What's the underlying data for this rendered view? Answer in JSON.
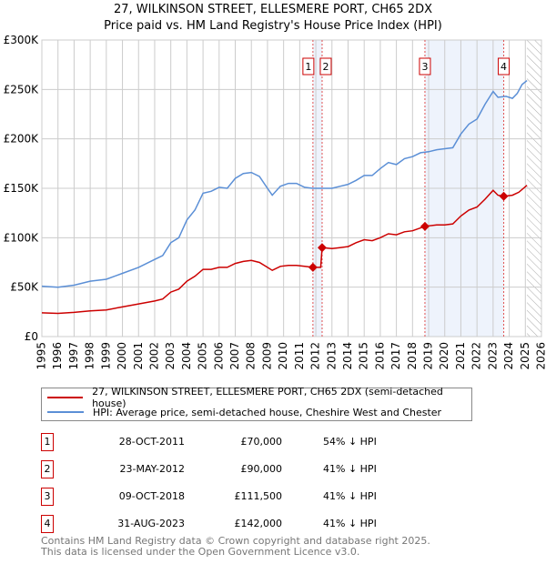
{
  "chart_data": {
    "type": "line",
    "title": "27, WILKINSON STREET, ELLESMERE PORT, CH65 2DX",
    "subtitle": "Price paid vs. HM Land Registry's House Price Index (HPI)",
    "xlim": [
      1995,
      2026
    ],
    "ylim": [
      0,
      300000
    ],
    "x_ticks": [
      "1995",
      "1996",
      "1997",
      "1998",
      "1999",
      "2000",
      "2001",
      "2002",
      "2003",
      "2004",
      "2005",
      "2006",
      "2007",
      "2008",
      "2009",
      "2010",
      "2011",
      "2012",
      "2013",
      "2014",
      "2015",
      "2016",
      "2017",
      "2018",
      "2019",
      "2020",
      "2021",
      "2022",
      "2023",
      "2024",
      "2025",
      "2026"
    ],
    "y_ticks": [
      {
        "v": 0,
        "label": "£0"
      },
      {
        "v": 50000,
        "label": "£50K"
      },
      {
        "v": 100000,
        "label": "£100K"
      },
      {
        "v": 150000,
        "label": "£150K"
      },
      {
        "v": 200000,
        "label": "£200K"
      },
      {
        "v": 250000,
        "label": "£250K"
      },
      {
        "v": 300000,
        "label": "£300K"
      }
    ],
    "grid": true,
    "series": [
      {
        "name": "27, WILKINSON STREET, ELLESMERE PORT, CH65 2DX (semi-detached house)",
        "color": "#cc0000",
        "x": [
          1995,
          1996,
          1997,
          1998,
          1999,
          2000,
          2001,
          2002,
          2002.5,
          2003,
          2003.5,
          2004,
          2004.5,
          2005,
          2005.5,
          2006,
          2006.5,
          2007,
          2007.5,
          2008,
          2008.5,
          2009,
          2009.3,
          2009.8,
          2010.3,
          2010.8,
          2011.3,
          2011.82,
          2012.3,
          2012.39,
          2013,
          2013.5,
          2014,
          2014.5,
          2015,
          2015.5,
          2016,
          2016.5,
          2017,
          2017.5,
          2018,
          2018.77,
          2019.5,
          2020,
          2020.5,
          2021,
          2021.5,
          2022,
          2022.5,
          2023,
          2023.3,
          2023.66,
          2024.2,
          2024.6,
          2025.1
        ],
        "y": [
          24000,
          23500,
          24500,
          26000,
          27000,
          30000,
          33000,
          36000,
          38000,
          45000,
          48000,
          56000,
          61000,
          68000,
          68000,
          70000,
          70000,
          74000,
          76000,
          77000,
          75000,
          70000,
          67000,
          71000,
          72000,
          72000,
          71000,
          70000,
          70000,
          90000,
          89000,
          90000,
          91000,
          95000,
          98000,
          97000,
          100000,
          104000,
          103000,
          106000,
          107000,
          111500,
          113000,
          113000,
          114000,
          122000,
          128000,
          131000,
          139000,
          148000,
          143000,
          142000,
          143000,
          146000,
          153000
        ]
      },
      {
        "name": "HPI: Average price, semi-detached house, Cheshire West and Chester",
        "color": "#5b8fd6",
        "x": [
          1995,
          1996,
          1997,
          1998,
          1999,
          2000,
          2001,
          2002,
          2002.5,
          2003,
          2003.5,
          2004,
          2004.5,
          2005,
          2005.5,
          2006,
          2006.5,
          2007,
          2007.5,
          2008,
          2008.5,
          2009,
          2009.3,
          2009.8,
          2010.3,
          2010.8,
          2011.3,
          2011.8,
          2012.5,
          2013,
          2013.5,
          2014,
          2014.5,
          2015,
          2015.5,
          2016,
          2016.5,
          2017,
          2017.5,
          2018,
          2018.5,
          2019,
          2019.5,
          2020,
          2020.5,
          2021,
          2021.5,
          2022,
          2022.5,
          2023,
          2023.3,
          2023.8,
          2024.2,
          2024.5,
          2024.8,
          2025.1
        ],
        "y": [
          51000,
          50000,
          52000,
          56000,
          58000,
          64000,
          70000,
          78000,
          82000,
          95000,
          100000,
          118000,
          128000,
          145000,
          147000,
          151000,
          150000,
          160000,
          165000,
          166000,
          162000,
          150000,
          143000,
          152000,
          155000,
          155000,
          151000,
          150000,
          150000,
          150000,
          152000,
          154000,
          158000,
          163000,
          163000,
          170000,
          176000,
          174000,
          180000,
          182000,
          186000,
          187000,
          189000,
          190000,
          191000,
          205000,
          215000,
          220000,
          235000,
          248000,
          242000,
          243000,
          241000,
          246000,
          255000,
          259000
        ]
      }
    ],
    "sales": [
      {
        "n": "1",
        "date": "28-OCT-2011",
        "price": "£70,000",
        "hpi": "54% ↓ HPI",
        "x": 2011.82,
        "y": 70000
      },
      {
        "n": "2",
        "date": "23-MAY-2012",
        "price": "£90,000",
        "hpi": "41% ↓ HPI",
        "x": 2012.39,
        "y": 90000
      },
      {
        "n": "3",
        "date": "09-OCT-2018",
        "price": "£111,500",
        "hpi": "41% ↓ HPI",
        "x": 2018.77,
        "y": 111500
      },
      {
        "n": "4",
        "date": "31-AUG-2023",
        "price": "£142,000",
        "hpi": "41% ↓ HPI",
        "x": 2023.66,
        "y": 142000
      }
    ],
    "forecast_start": 2025.1
  },
  "footer": {
    "line1": "Contains HM Land Registry data © Crown copyright and database right 2025.",
    "line2": "This data is licensed under the Open Government Licence v3.0."
  }
}
